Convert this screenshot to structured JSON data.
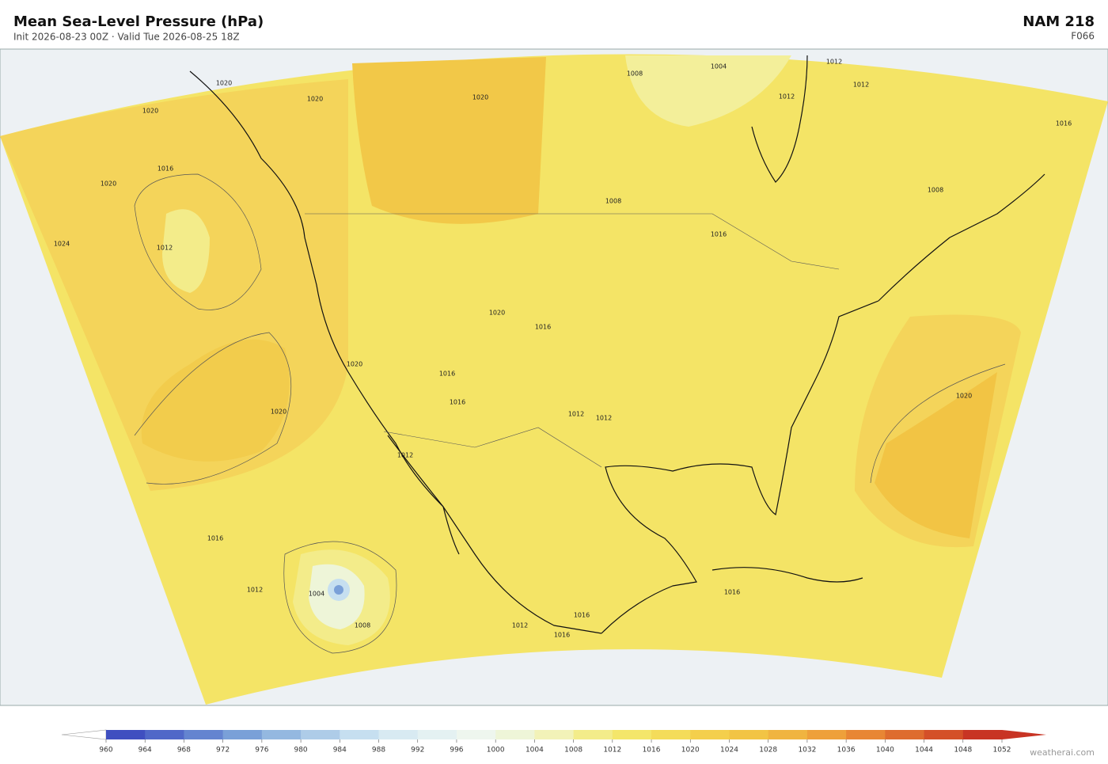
{
  "header": {
    "title": "Mean Sea-Level Pressure  (hPa)",
    "subtitle": "Init 2026-08-23 00Z  ·  Valid Tue 2026-08-25 18Z",
    "model": "NAM  218",
    "forecast_hour": "F066"
  },
  "map": {
    "contour_labels": [
      1020,
      1020,
      1020,
      1016,
      1020,
      1024,
      1012,
      1020,
      1016,
      1012,
      1004,
      1008,
      1020,
      1008,
      1004,
      1012,
      1012,
      1012,
      1016,
      1008,
      1008,
      1016,
      1020,
      1016,
      1020,
      1016,
      1016,
      1012,
      1012,
      1020,
      1016,
      1016,
      1016,
      1012,
      1012
    ]
  },
  "colorbar": {
    "ticks": [
      960,
      964,
      968,
      972,
      976,
      980,
      984,
      988,
      992,
      996,
      1000,
      1004,
      1008,
      1012,
      1016,
      1020,
      1024,
      1028,
      1032,
      1036,
      1040,
      1044,
      1048,
      1052
    ],
    "colors": [
      "#3f4fc0",
      "#5068c8",
      "#6484d0",
      "#7aa0d8",
      "#94b8e0",
      "#aecce8",
      "#c6dff0",
      "#d8eaf2",
      "#e4f1f2",
      "#eef6ee",
      "#eef5d8",
      "#f2f2b8",
      "#f3ec8a",
      "#f4e66a",
      "#f4dc5a",
      "#f4cf4c",
      "#f2c444",
      "#f0b440",
      "#eea03a",
      "#e88634",
      "#de6c2e",
      "#d45028",
      "#c83424"
    ]
  },
  "footer": {
    "attribution": "weatherai.com"
  }
}
